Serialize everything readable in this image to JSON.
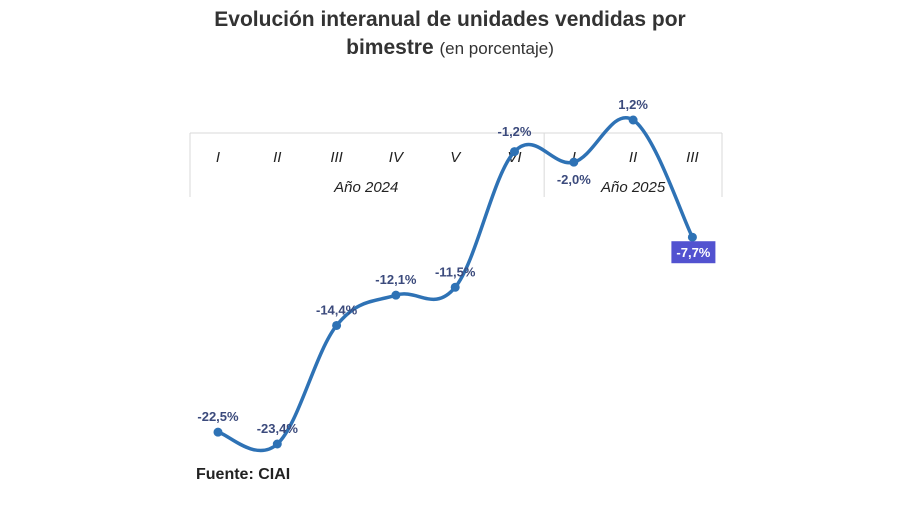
{
  "title": {
    "main_line1": "Evolución interanual de unidades vendidas por",
    "main_line2": "bimestre",
    "subtitle": "(en porcentaje)"
  },
  "source": "Fuente: CIAI",
  "chart_data": {
    "type": "line",
    "categories": [
      "I",
      "II",
      "III",
      "IV",
      "V",
      "VI",
      "I",
      "II",
      "III"
    ],
    "groups": [
      {
        "label": "Año 2024",
        "count": 6
      },
      {
        "label": "Año 2025",
        "count": 3
      }
    ],
    "values": [
      -22.5,
      -23.4,
      -14.4,
      -12.1,
      -11.5,
      -1.2,
      -2.0,
      1.2,
      -7.7
    ],
    "data_labels": [
      "-22,5%",
      "-23,4%",
      "-14,4%",
      "-12,1%",
      "-11,5%",
      "-1,2%",
      "-2,0%",
      "1,2%",
      "-7,7%"
    ],
    "highlight_index": 8,
    "ylim": [
      -23.4,
      1.2
    ],
    "colors": {
      "line": "#2e72b5",
      "label": "#3b4a7c",
      "highlight_bg": "#5252d0",
      "highlight_text": "#ffffff",
      "axis_text": "#222222",
      "grid": "#d9d9d9"
    }
  }
}
